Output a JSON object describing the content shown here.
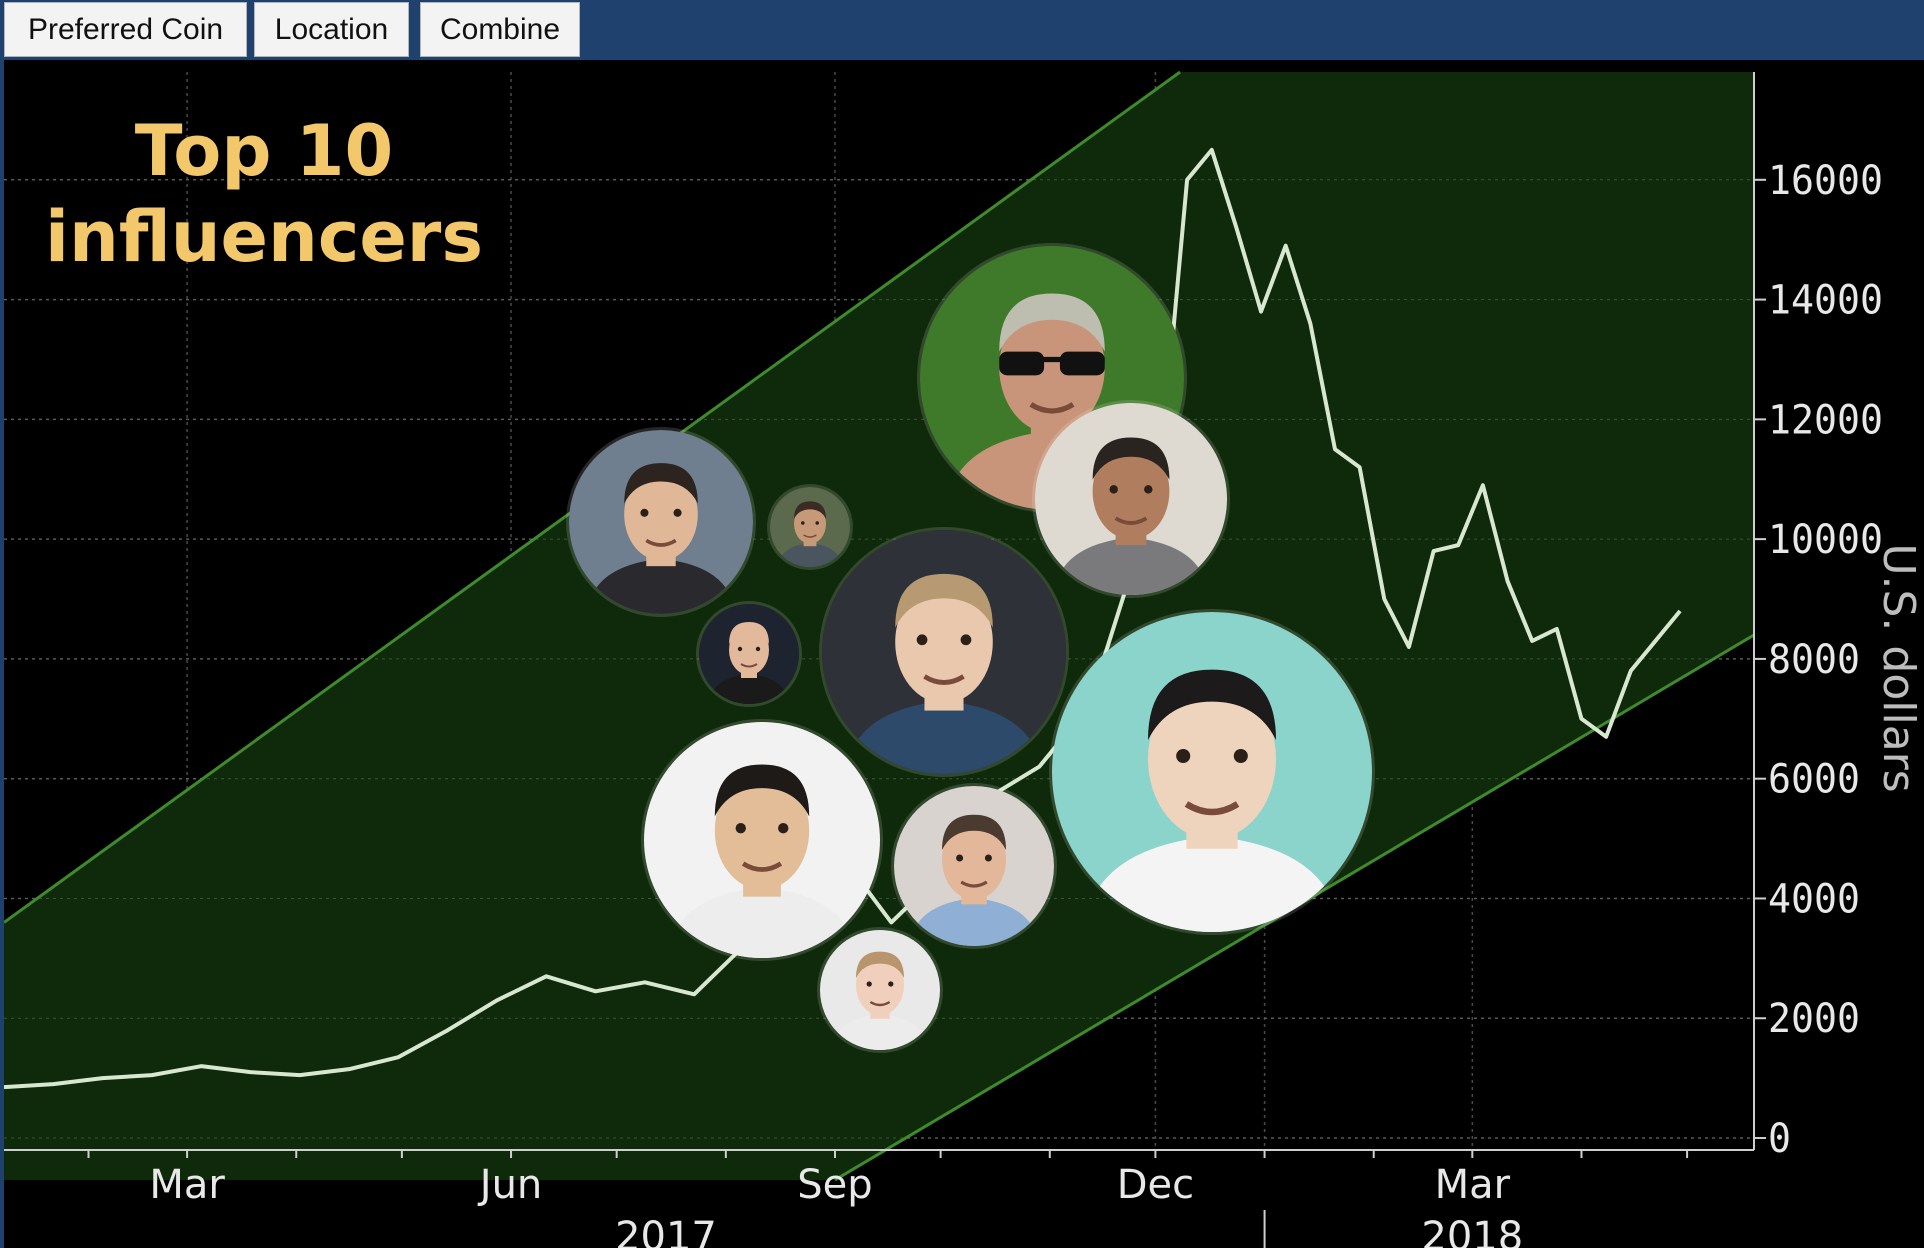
{
  "tabs": [
    {
      "label": "Preferred Coin"
    },
    {
      "label": "Location"
    },
    {
      "label": "Combine"
    }
  ],
  "headline": {
    "line1": "Top 10",
    "line2": "influencers"
  },
  "colors": {
    "channel": "#0f2a0a",
    "channel_edge": "#3f8a2c",
    "line": "#d8e8d0",
    "axis_text": "#e8e8e8",
    "headline": "#f2c86b"
  },
  "chart_data": {
    "type": "line",
    "ylabel": "U.S. dollars",
    "yticks": [
      0,
      2000,
      4000,
      6000,
      8000,
      10000,
      12000,
      14000,
      16000
    ],
    "ylim": [
      -200,
      17800
    ],
    "xlim": [
      "2017-01-08",
      "2018-05-20"
    ],
    "xticks": [
      {
        "date": "2017-03-01",
        "label": "Mar"
      },
      {
        "date": "2017-06-01",
        "label": "Jun"
      },
      {
        "date": "2017-09-01",
        "label": "Sep"
      },
      {
        "date": "2017-12-01",
        "label": "Dec"
      },
      {
        "date": "2018-03-01",
        "label": "Mar"
      }
    ],
    "years": [
      {
        "date": "2017-07-15",
        "label": "2017"
      },
      {
        "date": "2018-03-01",
        "label": "2018"
      }
    ],
    "grid": true,
    "series": [
      {
        "points": [
          [
            "2017-01-08",
            850
          ],
          [
            "2017-01-22",
            900
          ],
          [
            "2017-02-05",
            1000
          ],
          [
            "2017-02-19",
            1050
          ],
          [
            "2017-03-05",
            1200
          ],
          [
            "2017-03-19",
            1100
          ],
          [
            "2017-04-02",
            1050
          ],
          [
            "2017-04-16",
            1150
          ],
          [
            "2017-04-30",
            1350
          ],
          [
            "2017-05-14",
            1800
          ],
          [
            "2017-05-28",
            2300
          ],
          [
            "2017-06-11",
            2700
          ],
          [
            "2017-06-25",
            2450
          ],
          [
            "2017-07-09",
            2600
          ],
          [
            "2017-07-23",
            2400
          ],
          [
            "2017-08-06",
            3200
          ],
          [
            "2017-08-20",
            4000
          ],
          [
            "2017-09-03",
            4700
          ],
          [
            "2017-09-17",
            3600
          ],
          [
            "2017-10-01",
            4400
          ],
          [
            "2017-10-15",
            5700
          ],
          [
            "2017-10-29",
            6200
          ],
          [
            "2017-11-12",
            7200
          ],
          [
            "2017-11-26",
            9800
          ],
          [
            "2017-12-03",
            11500
          ],
          [
            "2017-12-10",
            16000
          ],
          [
            "2017-12-17",
            16500
          ],
          [
            "2017-12-24",
            15200
          ],
          [
            "2017-12-31",
            13800
          ],
          [
            "2018-01-07",
            14900
          ],
          [
            "2018-01-14",
            13600
          ],
          [
            "2018-01-21",
            11500
          ],
          [
            "2018-01-28",
            11200
          ],
          [
            "2018-02-04",
            9000
          ],
          [
            "2018-02-11",
            8200
          ],
          [
            "2018-02-18",
            9800
          ],
          [
            "2018-02-25",
            9900
          ],
          [
            "2018-03-04",
            10900
          ],
          [
            "2018-03-11",
            9300
          ],
          [
            "2018-03-18",
            8300
          ],
          [
            "2018-03-25",
            8500
          ],
          [
            "2018-04-01",
            7000
          ],
          [
            "2018-04-08",
            6700
          ],
          [
            "2018-04-15",
            7800
          ],
          [
            "2018-04-29",
            8800
          ]
        ]
      }
    ],
    "channel": {
      "upper": [
        [
          "2017-01-08",
          3600
        ],
        [
          "2017-12-08",
          17800
        ]
      ],
      "lower": [
        [
          "2017-09-01",
          -700
        ],
        [
          "2018-05-20",
          8400
        ]
      ]
    }
  },
  "influencers": [
    {
      "id": "sunglasses-man",
      "icon": "person-sunglasses-icon",
      "skin": "#c9957a",
      "hair": "#bdbdb0",
      "bg": "#3f7a2a",
      "shirt": "#c9957a",
      "glasses": true
    },
    {
      "id": "smiling-suit-man",
      "icon": "person-icon",
      "skin": "#e0b898",
      "hair": "#2d2420",
      "bg": "#6f7f8f",
      "shirt": "#2a2a2e"
    },
    {
      "id": "small-bearded-man",
      "icon": "person-icon",
      "skin": "#c69a78",
      "hair": "#3a2c22",
      "bg": "#5b6a4c",
      "shirt": "#4a5560"
    },
    {
      "id": "curly-hair-man",
      "icon": "person-icon",
      "skin": "#b07d5e",
      "hair": "#2a2420",
      "bg": "#dedad2",
      "shirt": "#7a7a7c"
    },
    {
      "id": "bald-man",
      "icon": "person-icon",
      "skin": "#e3b99c",
      "hair": "#e3b99c",
      "bg": "#1d2430",
      "shirt": "#1a1a1a"
    },
    {
      "id": "young-blond-man",
      "icon": "person-icon",
      "skin": "#e9c8ad",
      "hair": "#b89a72",
      "bg": "#2f3138",
      "shirt": "#2d4a6a"
    },
    {
      "id": "glasses-free-man",
      "icon": "person-icon",
      "skin": "#e3bc98",
      "hair": "#1d1a18",
      "bg": "#f2f2f2",
      "shirt": "#ededed"
    },
    {
      "id": "blue-shirt-man",
      "icon": "person-icon",
      "skin": "#e3b79a",
      "hair": "#4a3a30",
      "bg": "#d9d3cf",
      "shirt": "#8fb0d4"
    },
    {
      "id": "tron-man",
      "icon": "person-icon",
      "skin": "#efd4bd",
      "hair": "#1c1a1a",
      "bg": "#8ad4cc",
      "shirt": "#f4f4f4"
    },
    {
      "id": "young-pale-man",
      "icon": "person-icon",
      "skin": "#f0d0bd",
      "hair": "#b8956c",
      "bg": "#e9e9e9",
      "shirt": "#ececec"
    }
  ]
}
